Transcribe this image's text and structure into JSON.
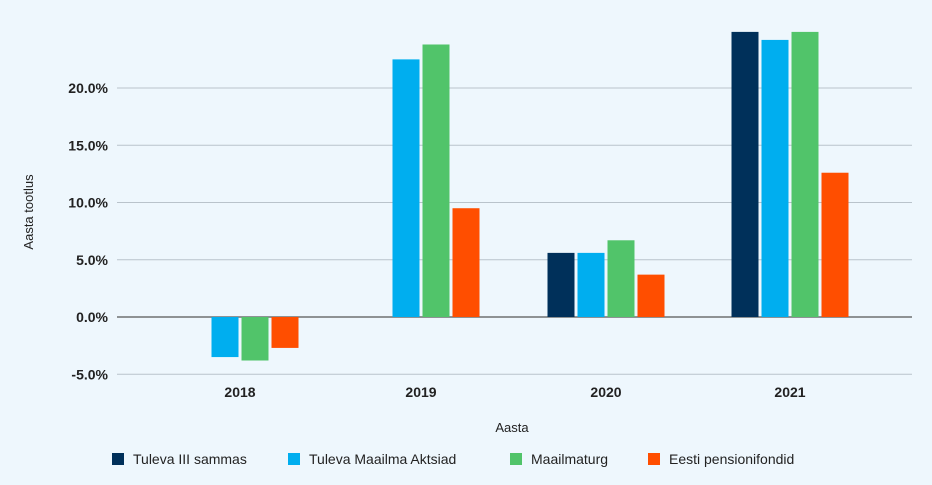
{
  "chart_data": {
    "type": "bar",
    "xlabel": "Aasta",
    "ylabel": "Aasta tootlus",
    "categories": [
      "2018",
      "2019",
      "2020",
      "2021"
    ],
    "ylim": [
      -5.0,
      24.5
    ],
    "yticks": [
      -5.0,
      0.0,
      5.0,
      10.0,
      15.0,
      20.0
    ],
    "ytick_labels": [
      "-5.0%",
      "0.0%",
      "5.0%",
      "10.0%",
      "15.0%",
      "20.0%"
    ],
    "grid": true,
    "legend_position": "bottom",
    "series": [
      {
        "name": "Tuleva III sammas",
        "color": "#00305a",
        "values": [
          null,
          null,
          5.6,
          24.9
        ]
      },
      {
        "name": "Tuleva Maailma Aktsiad",
        "color": "#00aeef",
        "values": [
          -3.5,
          22.5,
          5.6,
          24.2
        ]
      },
      {
        "name": "Maailmaturg",
        "color": "#51c46a",
        "values": [
          -3.8,
          23.8,
          6.7,
          24.9
        ]
      },
      {
        "name": "Eesti pensionifondid",
        "color": "#ff4e00",
        "values": [
          -2.7,
          9.5,
          3.7,
          12.6
        ]
      }
    ]
  }
}
